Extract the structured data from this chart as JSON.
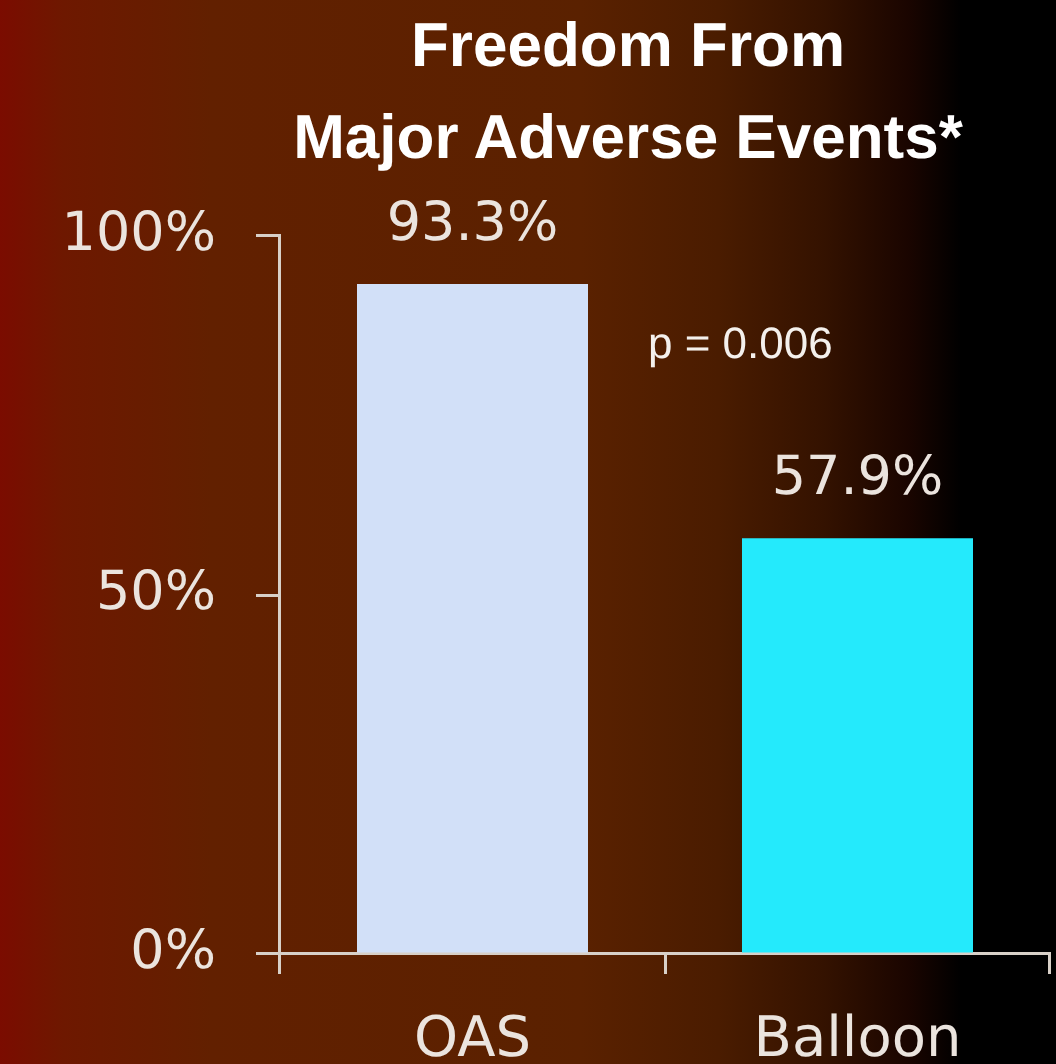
{
  "chart_data": {
    "type": "bar",
    "title": "Freedom From\nMajor Adverse Events*",
    "categories": [
      "OAS",
      "Balloon"
    ],
    "values": [
      93.3,
      57.9
    ],
    "colors": [
      "#d2e0f8",
      "#24eafc"
    ],
    "value_labels": [
      "93.3%",
      "57.9%"
    ],
    "ylim": [
      0,
      100
    ],
    "yticks": [
      {
        "value": 0,
        "label": "0%"
      },
      {
        "value": 50,
        "label": "50%"
      },
      {
        "value": 100,
        "label": "100%"
      }
    ],
    "annotations": [
      "p = 0.006"
    ],
    "legend": false,
    "grid": false
  }
}
